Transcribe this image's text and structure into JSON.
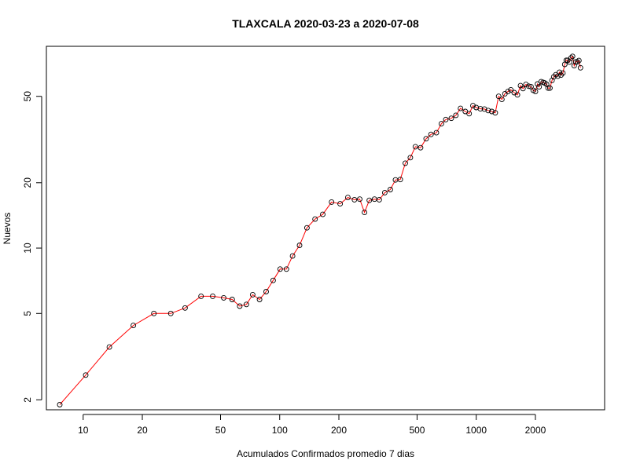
{
  "chart_data": {
    "type": "scatter",
    "title": "TLAXCALA 2020-03-23 a 2020-07-08",
    "xlabel": "Acumulados Confirmados promedio  7  dias",
    "ylabel": "Nuevos",
    "x_scale": "log",
    "y_scale": "log",
    "xlim": [
      6.5,
      4500
    ],
    "ylim": [
      1.8,
      85
    ],
    "grid": false,
    "x_ticks": [
      10,
      20,
      50,
      100,
      200,
      500,
      1000,
      2000
    ],
    "x_tick_labels": [
      "10",
      "20",
      "50",
      "100",
      "200",
      "500",
      "1000",
      "2000"
    ],
    "y_ticks": [
      2,
      5,
      10,
      20,
      50
    ],
    "y_tick_labels": [
      "2",
      "5",
      "10",
      "20",
      "50"
    ],
    "colors": {
      "line": "#ff0000",
      "point_stroke": "#000000",
      "frame": "#000000"
    },
    "points": [
      [
        7.6,
        1.9
      ],
      [
        10.3,
        2.6
      ],
      [
        13.6,
        3.5
      ],
      [
        18.0,
        4.4
      ],
      [
        22.9,
        5.0
      ],
      [
        27.9,
        5.0
      ],
      [
        33.0,
        5.3
      ],
      [
        39.8,
        6.0
      ],
      [
        45.6,
        6.0
      ],
      [
        51.9,
        5.9
      ],
      [
        57.3,
        5.8
      ],
      [
        62.6,
        5.4
      ],
      [
        67.7,
        5.5
      ],
      [
        72.9,
        6.1
      ],
      [
        79.0,
        5.8
      ],
      [
        85.3,
        6.3
      ],
      [
        92.6,
        7.1
      ],
      [
        100.5,
        8.0
      ],
      [
        108.2,
        8.0
      ],
      [
        116.3,
        9.2
      ],
      [
        126.2,
        10.3
      ],
      [
        137.6,
        12.4
      ],
      [
        151.3,
        13.6
      ],
      [
        165.6,
        14.3
      ],
      [
        183.6,
        16.3
      ],
      [
        202.9,
        16.0
      ],
      [
        222.2,
        17.1
      ],
      [
        240.0,
        16.7
      ],
      [
        255.4,
        16.8
      ],
      [
        270.0,
        14.6
      ],
      [
        285.6,
        16.6
      ],
      [
        303.5,
        16.8
      ],
      [
        321.0,
        16.7
      ],
      [
        342.5,
        18.0
      ],
      [
        365.2,
        18.6
      ],
      [
        388.1,
        20.6
      ],
      [
        410.5,
        20.7
      ],
      [
        435.7,
        24.6
      ],
      [
        462.0,
        26.1
      ],
      [
        490.0,
        29.3
      ],
      [
        521.0,
        29.0
      ],
      [
        556.0,
        31.9
      ],
      [
        589.0,
        33.4
      ],
      [
        627.0,
        34.0
      ],
      [
        665.0,
        37.4
      ],
      [
        700.0,
        39.1
      ],
      [
        747.0,
        39.6
      ],
      [
        788.0,
        40.9
      ],
      [
        832.0,
        44.0
      ],
      [
        880.0,
        42.6
      ],
      [
        920.0,
        41.6
      ],
      [
        962.0,
        45.3
      ],
      [
        1000.0,
        44.4
      ],
      [
        1050.0,
        43.8
      ],
      [
        1100.0,
        43.7
      ],
      [
        1150.0,
        43.0
      ],
      [
        1200.0,
        42.6
      ],
      [
        1250.0,
        42.0
      ],
      [
        1300.0,
        50.0
      ],
      [
        1350.0,
        48.4
      ],
      [
        1400.0,
        51.4
      ],
      [
        1450.0,
        52.6
      ],
      [
        1500.0,
        53.6
      ],
      [
        1560.0,
        52.0
      ],
      [
        1620.0,
        50.8
      ],
      [
        1680.0,
        56.0
      ],
      [
        1730.0,
        54.3
      ],
      [
        1790.0,
        56.7
      ],
      [
        1850.0,
        55.7
      ],
      [
        1900.0,
        55.4
      ],
      [
        1950.0,
        53.3
      ],
      [
        2000.0,
        52.6
      ],
      [
        2050.0,
        57.0
      ],
      [
        2090.0,
        55.3
      ],
      [
        2140.0,
        58.4
      ],
      [
        2190.0,
        58.0
      ],
      [
        2230.0,
        57.6
      ],
      [
        2280.0,
        56.8
      ],
      [
        2320.0,
        54.6
      ],
      [
        2370.0,
        54.6
      ],
      [
        2430.0,
        59.2
      ],
      [
        2480.0,
        61.5
      ],
      [
        2540.0,
        62.9
      ],
      [
        2600.0,
        61.9
      ],
      [
        2650.0,
        64.5
      ],
      [
        2700.0,
        62.6
      ],
      [
        2760.0,
        64.0
      ],
      [
        2820.0,
        70.2
      ],
      [
        2870.0,
        73.3
      ],
      [
        2920.0,
        73.3
      ],
      [
        2980.0,
        71.9
      ],
      [
        3040.0,
        75.2
      ],
      [
        3090.0,
        76.4
      ],
      [
        3150.0,
        69.2
      ],
      [
        3210.0,
        72.1
      ],
      [
        3270.0,
        72.1
      ],
      [
        3330.0,
        73.1
      ],
      [
        3390.0,
        67.7
      ]
    ]
  }
}
